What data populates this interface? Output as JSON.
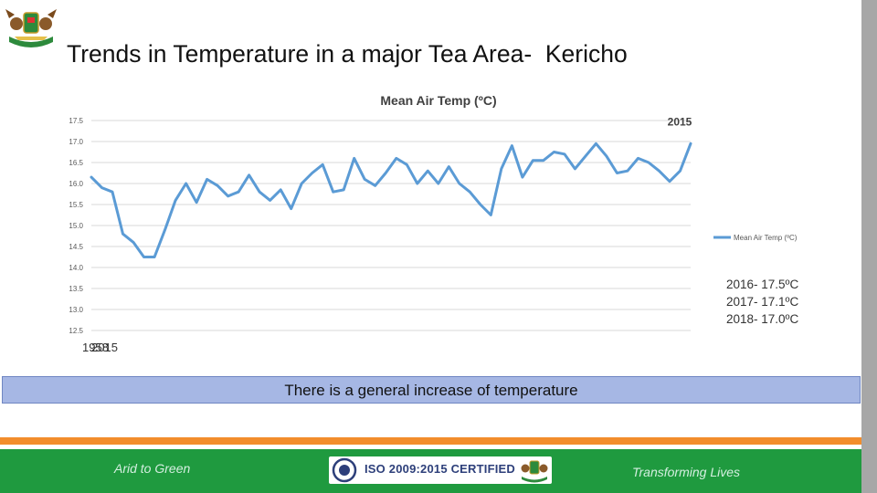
{
  "slide": {
    "title": "Trends in Temperature in a major Tea Area-  Kericho",
    "summary": "There is a general increase of temperature"
  },
  "chart_data": {
    "type": "line",
    "title": "Mean Air Temp (ºC)",
    "xlabel": "",
    "ylabel": "",
    "ylim": [
      12.5,
      17.5
    ],
    "y_ticks": [
      "12.5",
      "13.0",
      "13.5",
      "14.0",
      "14.5",
      "15.0",
      "15.5",
      "16.0",
      "16.5",
      "17.0",
      "17.5"
    ],
    "x_range_labels": [
      "1958",
      "2015"
    ],
    "end_label": "2015",
    "grid": true,
    "legend": "right",
    "series": [
      {
        "name": "Mean Air Temp (ºC)",
        "color": "#5b9bd5",
        "x": [
          1958,
          1959,
          1960,
          1961,
          1962,
          1963,
          1964,
          1965,
          1966,
          1967,
          1968,
          1969,
          1970,
          1971,
          1972,
          1973,
          1974,
          1975,
          1976,
          1977,
          1978,
          1979,
          1980,
          1981,
          1982,
          1983,
          1984,
          1985,
          1986,
          1987,
          1988,
          1989,
          1990,
          1991,
          1992,
          1993,
          1994,
          1995,
          1996,
          1997,
          1998,
          1999,
          2000,
          2001,
          2002,
          2003,
          2004,
          2005,
          2006,
          2007,
          2008,
          2009,
          2010,
          2011,
          2012,
          2013,
          2014,
          2015
        ],
        "values": [
          16.15,
          15.9,
          15.8,
          14.8,
          14.6,
          14.25,
          14.25,
          14.9,
          15.6,
          16.0,
          15.55,
          16.1,
          15.95,
          15.7,
          15.8,
          16.2,
          15.8,
          15.6,
          15.85,
          15.4,
          16.0,
          16.25,
          16.45,
          15.8,
          15.85,
          16.6,
          16.1,
          15.95,
          16.25,
          16.6,
          16.45,
          16.0,
          16.3,
          16.0,
          16.4,
          16.0,
          15.8,
          15.5,
          15.25,
          16.35,
          16.9,
          16.15,
          16.55,
          16.55,
          16.75,
          16.7,
          16.35,
          16.65,
          16.95,
          16.65,
          16.25,
          16.3,
          16.6,
          16.5,
          16.3,
          16.05,
          16.3,
          16.95
        ]
      }
    ],
    "annotations": [
      "2016- 17.5ºC",
      "2017- 17.1ºC",
      "2018- 17.0ºC"
    ]
  },
  "footer": {
    "left": "Arid to Green",
    "center": "ISO 2009:2015 CERTIFIED",
    "right": "Transforming Lives"
  }
}
